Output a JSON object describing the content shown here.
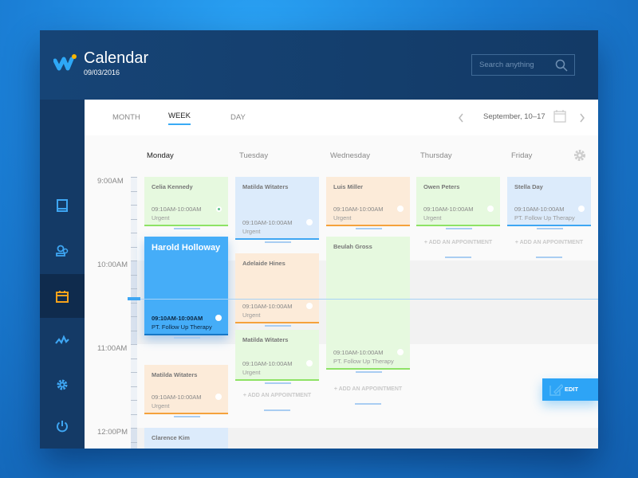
{
  "app": {
    "title": "Calendar",
    "date": "09/03/2016",
    "accent": "#39aaf5"
  },
  "search": {
    "placeholder": "Search anything"
  },
  "sidebar": {
    "items": [
      {
        "icon": "book-icon"
      },
      {
        "icon": "users-icon"
      },
      {
        "icon": "calendar-icon",
        "active": true
      },
      {
        "icon": "activity-icon"
      },
      {
        "icon": "settings-icon"
      },
      {
        "icon": "power-icon"
      }
    ]
  },
  "tabs": [
    {
      "label": "MONTH"
    },
    {
      "label": "WEEK",
      "active": true
    },
    {
      "label": "DAY"
    }
  ],
  "range": "September, 10–17",
  "days": [
    "Monday",
    "Tuesday",
    "Wednesday",
    "Thursday",
    "Friday"
  ],
  "times": [
    "9:00AM",
    "10:00AM",
    "11:00AM",
    "12:00PM"
  ],
  "add_label": "+ ADD AN APPOINTMENT",
  "edit_label": "EDIT",
  "events": [
    {
      "day": "Monday",
      "name": "Celia Kennedy",
      "time": "09:10AM-10:00AM",
      "note": "Urgent",
      "color": "green"
    },
    {
      "day": "Monday",
      "name": "Harold Holloway",
      "time": "09:10AM-10:00AM",
      "note": "PT. Follow Up Therapy",
      "color": "blue",
      "selected": true
    },
    {
      "day": "Monday",
      "name": "Matilda Witaters",
      "time": "09:10AM-10:00AM",
      "note": "Urgent",
      "color": "orange"
    },
    {
      "day": "Monday",
      "name": "Clarence Kim",
      "color": "blue"
    },
    {
      "day": "Tuesday",
      "name": "Matilda Witaters",
      "time": "09:10AM-10:00AM",
      "note": "Urgent",
      "color": "blue"
    },
    {
      "day": "Tuesday",
      "name": "Adelaide Hines",
      "time": "09:10AM-10:00AM",
      "note": "Urgent",
      "color": "orange"
    },
    {
      "day": "Tuesday",
      "name": "Matilda Witaters",
      "time": "09:10AM-10:00AM",
      "note": "Urgent",
      "color": "green"
    },
    {
      "day": "Wednesday",
      "name": "Luis Miller",
      "time": "09:10AM-10:00AM",
      "note": "Urgent",
      "color": "orange"
    },
    {
      "day": "Wednesday",
      "name": "Beulah Gross",
      "time": "09:10AM-10:00AM",
      "note": "PT. Follow Up Therapy",
      "color": "green"
    },
    {
      "day": "Thursday",
      "name": "Owen Peters",
      "time": "09:10AM-10:00AM",
      "note": "Urgent",
      "color": "green"
    },
    {
      "day": "Friday",
      "name": "Stella Day",
      "time": "09:10AM-10:00AM",
      "note": "PT. Follow Up Therapy",
      "color": "blue"
    }
  ]
}
